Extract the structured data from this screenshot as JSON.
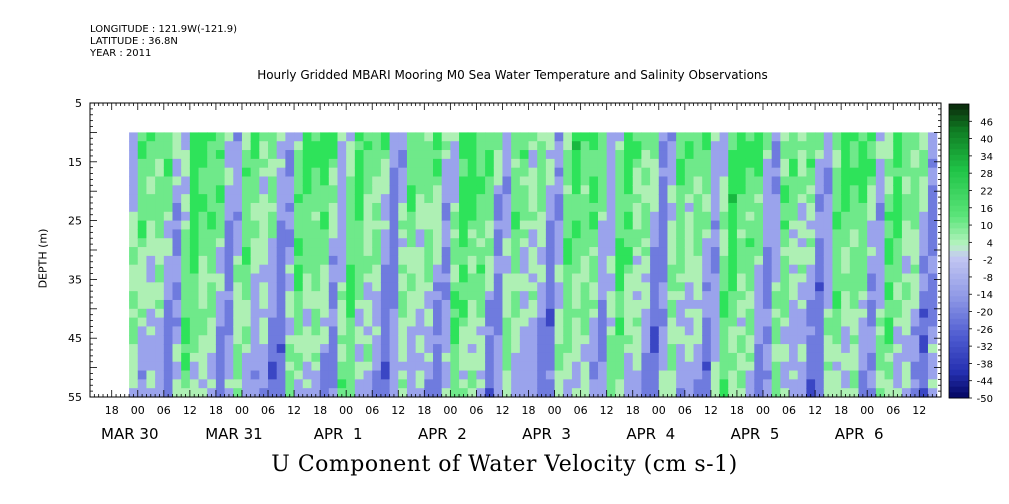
{
  "header": {
    "longitude": "LONGITUDE : 121.9W(-121.9)",
    "latitude": "LATITUDE : 36.8N",
    "year": "YEAR : 2011"
  },
  "chart_data": {
    "type": "heatmap",
    "title": "Hourly Gridded MBARI Mooring M0 Sea Water Temperature and Salinity Observations",
    "ylabel": "DEPTH (m)",
    "xlabel": "U Component of Water Velocity (cm s-1)",
    "x_time_range": [
      "2011-03-29 13:00",
      "2011-04-06 17:00"
    ],
    "data_time_range": [
      "2011-03-29 22:00",
      "2011-04-06 15:00"
    ],
    "ylim": [
      55,
      5
    ],
    "data_depth_range": [
      10,
      55
    ],
    "y_ticks": [
      5,
      15,
      25,
      35,
      45,
      55
    ],
    "hour_ticks": [
      "18",
      "00",
      "06",
      "12",
      "18",
      "00",
      "06",
      "12",
      "18",
      "00",
      "06",
      "12",
      "18",
      "00",
      "06",
      "12",
      "18",
      "00",
      "06",
      "12",
      "18",
      "00",
      "06",
      "12",
      "18",
      "00",
      "06",
      "12",
      "18",
      "00",
      "06",
      "12"
    ],
    "date_labels": [
      "MAR 30",
      "MAR 31",
      "APR  1",
      "APR  2",
      "APR  3",
      "APR  4",
      "APR  5",
      "APR  6"
    ],
    "colorbar_levels": [
      "46",
      "40",
      "34",
      "28",
      "22",
      "16",
      "10",
      "4",
      "-2",
      "-8",
      "-14",
      "-20",
      "-26",
      "-32",
      "-38",
      "-44",
      "-50"
    ],
    "colorbar_range": [
      -50,
      52
    ],
    "colors": {
      "strong_negative": "#0a0a6e",
      "negative": "#9aa3ec",
      "near_zero": "#aef0b4",
      "positive": "#2ee35a",
      "strong_positive": "#0b4a16"
    }
  }
}
